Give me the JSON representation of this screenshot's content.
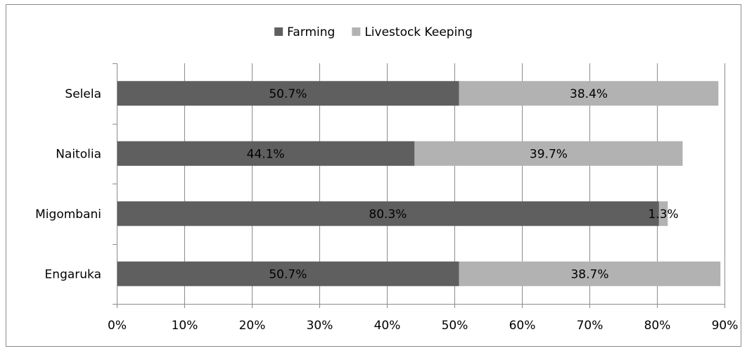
{
  "colors": {
    "farming": "#5f5f5f",
    "livestock": "#b2b2b2",
    "grid": "#8c8c8c",
    "axis": "#8c8c8c",
    "background": "#ffffff"
  },
  "chart_data": {
    "type": "bar",
    "orientation": "horizontal",
    "stacked": true,
    "categories": [
      "Selela",
      "Naitolia",
      "Migombani",
      "Engaruka"
    ],
    "series": [
      {
        "name": "Farming",
        "values": [
          50.7,
          44.1,
          80.3,
          50.7
        ],
        "labels": [
          "50.7%",
          "44.1%",
          "80.3%",
          "50.7%"
        ],
        "color": "#5f5f5f"
      },
      {
        "name": "Livestock Keeping",
        "values": [
          38.4,
          39.7,
          1.3,
          38.7
        ],
        "labels": [
          "38.4%",
          "39.7%",
          "1.3%",
          "38.7%"
        ],
        "color": "#b2b2b2"
      }
    ],
    "xlim": [
      0,
      90
    ],
    "xticks": [
      0,
      10,
      20,
      30,
      40,
      50,
      60,
      70,
      80,
      90
    ],
    "xtick_labels": [
      "0%",
      "10%",
      "20%",
      "30%",
      "40%",
      "50%",
      "60%",
      "70%",
      "80%",
      "90%"
    ],
    "grid": "vertical",
    "legend_position": "top-center",
    "title": "",
    "xlabel": "",
    "ylabel": ""
  }
}
